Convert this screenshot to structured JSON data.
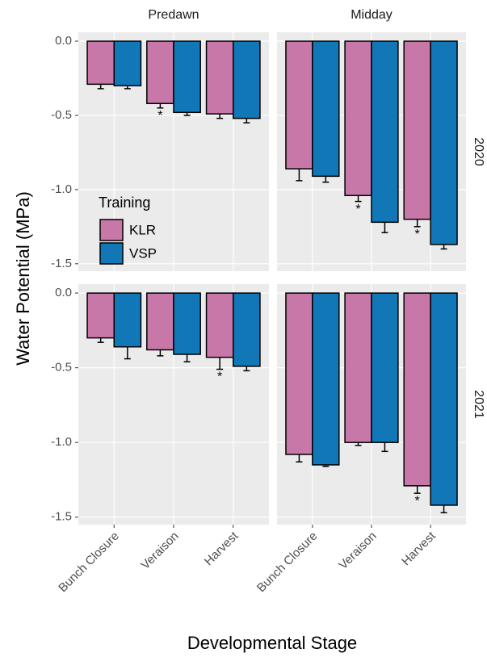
{
  "chart_data": {
    "type": "bar",
    "xlabel": "Developmental Stage",
    "ylabel": "Water Potential (MPa)",
    "legend_title": "Training",
    "legend_position": "inside-left",
    "grid": true,
    "categories": [
      "Bunch Closure",
      "Veraison",
      "Harvest"
    ],
    "facet_columns": [
      "Predawn",
      "Midday"
    ],
    "facet_rows": [
      "2020",
      "2021"
    ],
    "series": [
      {
        "name": "KLR",
        "color": "#c878a8"
      },
      {
        "name": "VSP",
        "color": "#1177b7"
      }
    ],
    "ylim": [
      -1.55,
      0.06
    ],
    "yticks": [
      {
        "value": 0,
        "label": "0.0"
      },
      {
        "value": -0.5,
        "label": "-0.5"
      },
      {
        "value": -1,
        "label": "-1.0"
      },
      {
        "value": -1.5,
        "label": "-1.5"
      }
    ],
    "panels": [
      [
        {
          "values": [
            -0.29,
            -0.42,
            -0.49
          ],
          "errors": [
            0.03,
            0.03,
            0.03
          ],
          "annotations": [
            null,
            "*",
            null
          ]
        },
        {
          "values": [
            -0.3,
            -0.48,
            -0.52
          ],
          "errors": [
            0.02,
            0.02,
            0.03
          ],
          "annotations": [
            null,
            null,
            null
          ]
        }
      ],
      [
        {
          "values": [
            -0.86,
            -1.04,
            -1.2
          ],
          "errors": [
            0.08,
            0.04,
            0.05
          ],
          "annotations": [
            null,
            "*",
            "*"
          ]
        },
        {
          "values": [
            -0.91,
            -1.22,
            -1.37
          ],
          "errors": [
            0.04,
            0.07,
            0.03
          ],
          "annotations": [
            null,
            null,
            null
          ]
        }
      ],
      [
        {
          "values": [
            -0.3,
            -0.38,
            -0.43
          ],
          "errors": [
            0.03,
            0.04,
            0.08
          ],
          "annotations": [
            null,
            null,
            "*"
          ]
        },
        {
          "values": [
            -0.36,
            -0.41,
            -0.49
          ],
          "errors": [
            0.08,
            0.05,
            0.03
          ],
          "annotations": [
            null,
            null,
            null
          ]
        }
      ],
      [
        {
          "values": [
            -1.08,
            -1.0,
            -1.29
          ],
          "errors": [
            0.05,
            0.02,
            0.05
          ],
          "annotations": [
            null,
            null,
            "*"
          ]
        },
        {
          "values": [
            -1.15,
            -1.0,
            -1.42
          ],
          "errors": [
            0.01,
            0.06,
            0.05
          ],
          "annotations": [
            null,
            null,
            null
          ]
        }
      ]
    ]
  }
}
